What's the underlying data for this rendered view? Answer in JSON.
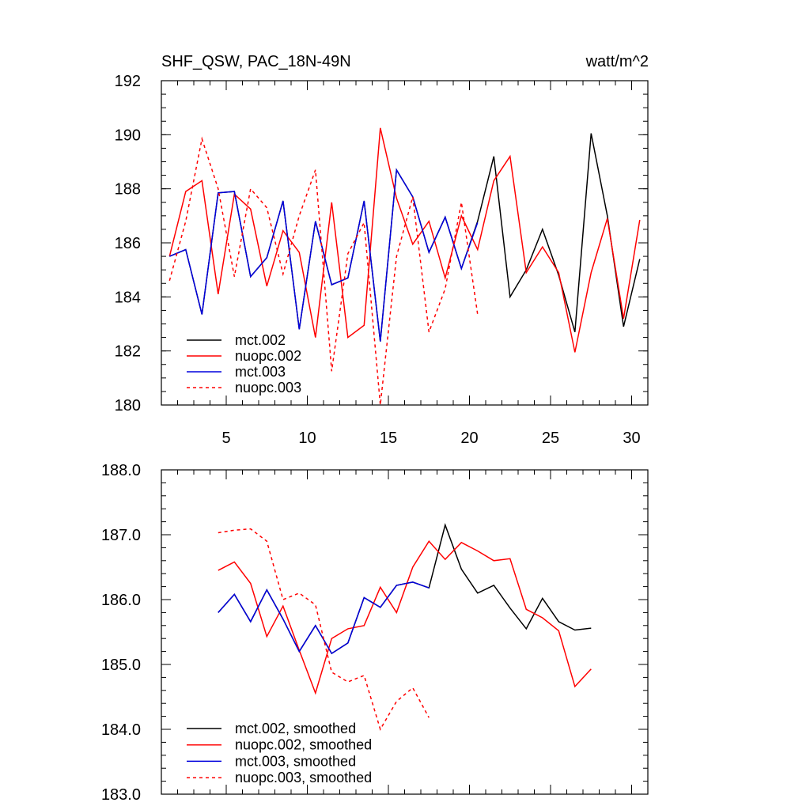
{
  "chart_data": [
    {
      "type": "line",
      "title": "SHF_QSW, PAC_18N-49N",
      "units": "watt/m^2",
      "xlim": [
        1,
        31
      ],
      "ylim": [
        180,
        192
      ],
      "xticks": [
        5,
        10,
        15,
        20,
        25,
        30
      ],
      "yticks": [
        180,
        182,
        184,
        186,
        188,
        190,
        192
      ],
      "ytick_labels": [
        "180",
        "182",
        "184",
        "186",
        "188",
        "190",
        "192"
      ],
      "legend_position": "bottom-left",
      "series": [
        {
          "name": "mct.002",
          "color": "#000000",
          "dash": "solid",
          "x": [
            1.5,
            2.5,
            3.5,
            4.5,
            5.5,
            6.5,
            7.5,
            8.5,
            9.5,
            10.5,
            11.5,
            12.5,
            13.5,
            14.5,
            15.5,
            16.5,
            17.5,
            18.5,
            19.5,
            20.5,
            21.5,
            22.5,
            23.5,
            24.5,
            25.5,
            26.5,
            27.5,
            28.5,
            29.5,
            30.5
          ],
          "values": [
            185.5,
            185.75,
            183.35,
            187.85,
            187.9,
            184.75,
            185.45,
            187.55,
            182.8,
            186.8,
            184.45,
            184.7,
            187.55,
            182.35,
            188.7,
            187.7,
            185.65,
            186.95,
            185.05,
            186.8,
            189.2,
            184.0,
            185.0,
            186.5,
            184.8,
            182.7,
            190.05,
            187.0,
            182.9,
            185.4
          ]
        },
        {
          "name": "nuopc.002",
          "color": "#ff0000",
          "dash": "solid",
          "x": [
            1.5,
            2.5,
            3.5,
            4.5,
            5.5,
            6.5,
            7.5,
            8.5,
            9.5,
            10.5,
            11.5,
            12.5,
            13.5,
            14.5,
            15.5,
            16.5,
            17.5,
            18.5,
            19.5,
            20.5,
            21.5,
            22.5,
            23.5,
            24.5,
            25.5,
            26.5,
            27.5,
            28.5,
            29.5,
            30.5
          ],
          "values": [
            185.5,
            187.9,
            188.3,
            184.1,
            187.8,
            187.25,
            184.4,
            186.45,
            185.65,
            182.5,
            187.5,
            182.5,
            182.95,
            190.25,
            187.65,
            185.95,
            186.8,
            184.7,
            187.0,
            185.75,
            188.3,
            189.2,
            184.9,
            185.85,
            184.9,
            181.95,
            184.9,
            186.9,
            183.2,
            186.85
          ]
        },
        {
          "name": "mct.003",
          "color": "#0000dd",
          "dash": "solid",
          "x": [
            1.5,
            2.5,
            3.5,
            4.5,
            5.5,
            6.5,
            7.5,
            8.5,
            9.5,
            10.5,
            11.5,
            12.5,
            13.5,
            14.5,
            15.5,
            16.5,
            17.5,
            18.5,
            19.5,
            20.5
          ],
          "values": [
            185.5,
            185.75,
            183.35,
            187.85,
            187.9,
            184.75,
            185.45,
            187.55,
            182.8,
            186.8,
            184.45,
            184.7,
            187.55,
            182.35,
            188.7,
            187.7,
            185.65,
            186.95,
            185.05,
            186.75
          ]
        },
        {
          "name": "nuopc.003",
          "color": "#ff0000",
          "dash": "dashed",
          "x": [
            1.5,
            2.5,
            3.5,
            4.5,
            5.5,
            6.5,
            7.5,
            8.5,
            9.5,
            10.5,
            11.5,
            12.5,
            13.5,
            14.5,
            15.5,
            16.5,
            17.5,
            18.5,
            19.5,
            20.5
          ],
          "values": [
            184.6,
            186.8,
            189.85,
            188.0,
            184.75,
            188.0,
            187.3,
            184.85,
            187.0,
            188.7,
            181.25,
            185.6,
            186.75,
            180.0,
            185.5,
            187.7,
            182.7,
            184.3,
            187.5,
            183.35
          ]
        }
      ]
    },
    {
      "type": "line",
      "xlim": [
        1,
        31
      ],
      "ylim": [
        183.0,
        188.0
      ],
      "xticks": [
        5,
        10,
        15,
        20,
        25,
        30
      ],
      "yticks": [
        183.0,
        184.0,
        185.0,
        186.0,
        187.0,
        188.0
      ],
      "ytick_labels": [
        "183.0",
        "184.0",
        "185.0",
        "186.0",
        "187.0",
        "188.0"
      ],
      "legend_position": "bottom-left",
      "series": [
        {
          "name": "mct.002, smoothed",
          "color": "#000000",
          "dash": "solid",
          "x": [
            4.5,
            5.5,
            6.5,
            7.5,
            8.5,
            9.5,
            10.5,
            11.5,
            12.5,
            13.5,
            14.5,
            15.5,
            16.5,
            17.5,
            18.5,
            19.5,
            20.5,
            21.5,
            22.5,
            23.5,
            24.5,
            25.5,
            26.5,
            27.5
          ],
          "values": [
            185.8,
            186.08,
            185.66,
            186.15,
            185.7,
            185.2,
            185.6,
            185.17,
            185.33,
            186.03,
            185.88,
            186.22,
            186.27,
            186.18,
            187.15,
            186.47,
            186.1,
            186.22,
            185.87,
            185.55,
            186.02,
            185.66,
            185.53,
            185.56
          ]
        },
        {
          "name": "nuopc.002, smoothed",
          "color": "#ff0000",
          "dash": "solid",
          "x": [
            4.5,
            5.5,
            6.5,
            7.5,
            8.5,
            9.5,
            10.5,
            11.5,
            12.5,
            13.5,
            14.5,
            15.5,
            16.5,
            17.5,
            18.5,
            19.5,
            20.5,
            21.5,
            22.5,
            23.5,
            24.5,
            25.5,
            26.5,
            27.5
          ],
          "values": [
            186.45,
            186.58,
            186.25,
            185.43,
            185.9,
            185.22,
            184.56,
            185.4,
            185.55,
            185.6,
            186.19,
            185.8,
            186.5,
            186.9,
            186.62,
            186.88,
            186.75,
            186.6,
            186.63,
            185.85,
            185.72,
            185.52,
            184.66,
            184.93
          ]
        },
        {
          "name": "mct.003, smoothed",
          "color": "#0000dd",
          "dash": "solid",
          "x": [
            4.5,
            5.5,
            6.5,
            7.5,
            8.5,
            9.5,
            10.5,
            11.5,
            12.5,
            13.5,
            14.5,
            15.5,
            16.5,
            17.5
          ],
          "values": [
            185.8,
            186.08,
            185.66,
            186.15,
            185.7,
            185.2,
            185.6,
            185.17,
            185.33,
            186.03,
            185.88,
            186.22,
            186.27,
            186.18
          ]
        },
        {
          "name": "nuopc.003, smoothed",
          "color": "#ff0000",
          "dash": "dashed",
          "x": [
            4.5,
            5.5,
            6.5,
            7.5,
            8.5,
            9.5,
            10.5,
            11.5,
            12.5,
            13.5,
            14.5,
            15.5,
            16.5,
            17.5
          ],
          "values": [
            187.03,
            187.07,
            187.09,
            186.9,
            186.0,
            186.1,
            185.92,
            184.88,
            184.73,
            184.83,
            184.0,
            184.43,
            184.64,
            184.18
          ]
        }
      ]
    }
  ]
}
